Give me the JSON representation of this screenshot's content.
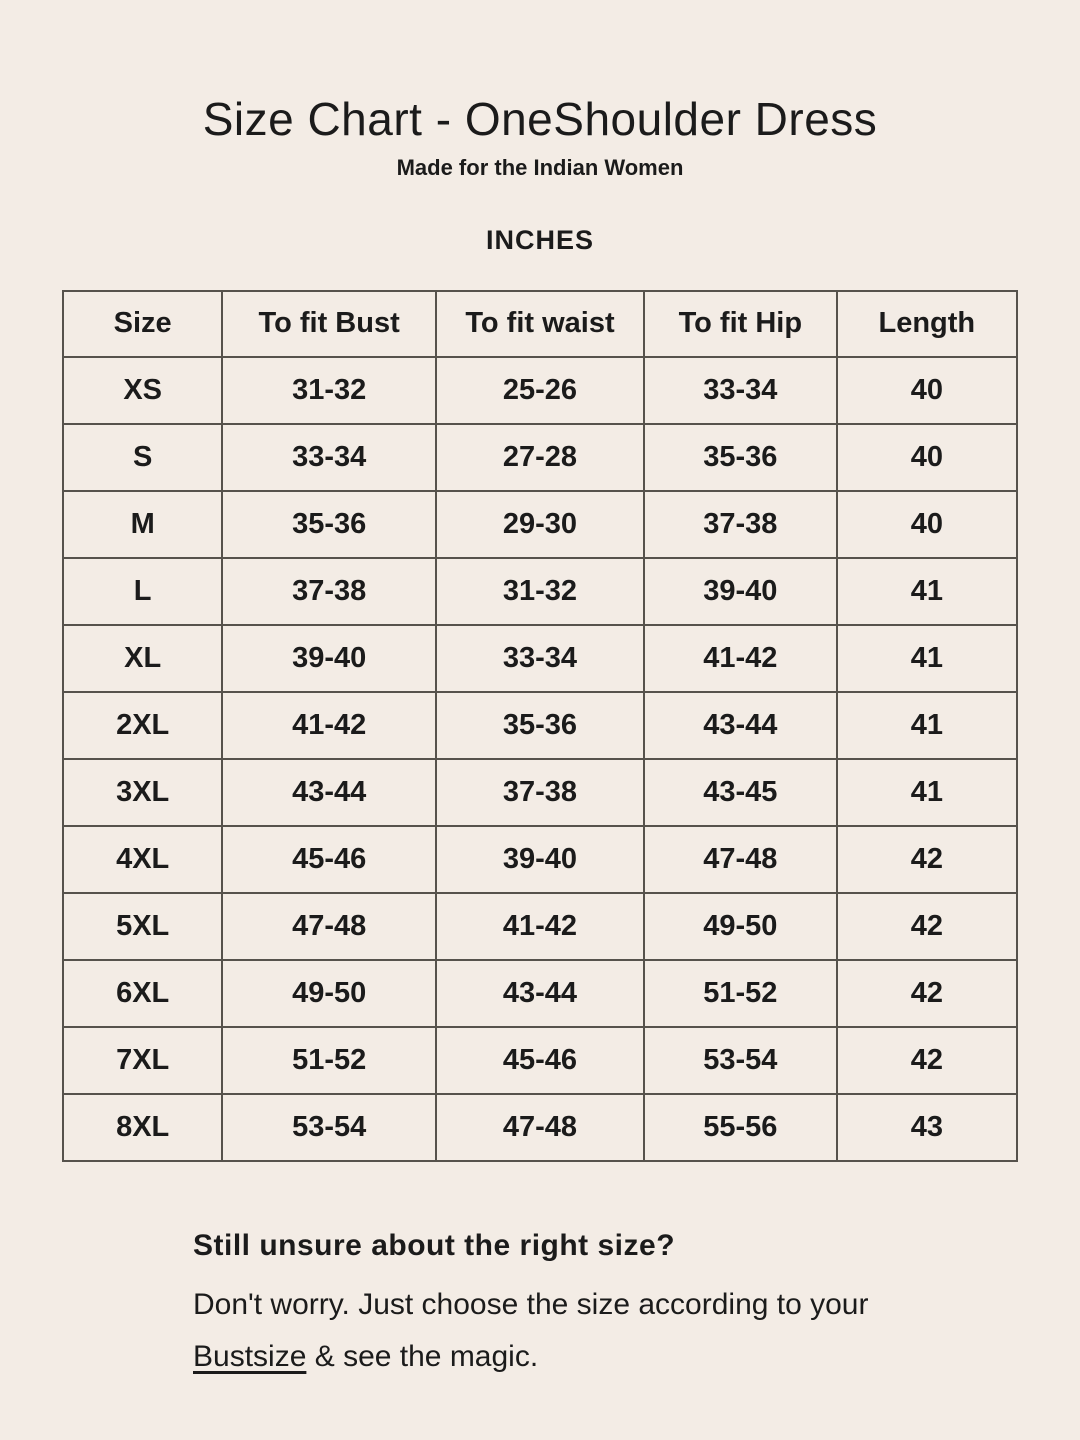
{
  "page": {
    "title": "Size Chart - OneShoulder Dress",
    "subtitle": "Made for the Indian Women",
    "unit_label": "INCHES"
  },
  "chart_data": {
    "type": "table",
    "title": "Size Chart - OneShoulder Dress",
    "columns": [
      "Size",
      "To fit Bust",
      "To fit waist",
      "To fit Hip",
      "Length"
    ],
    "rows": [
      [
        "XS",
        "31-32",
        "25-26",
        "33-34",
        "40"
      ],
      [
        "S",
        "33-34",
        "27-28",
        "35-36",
        "40"
      ],
      [
        "M",
        "35-36",
        "29-30",
        "37-38",
        "40"
      ],
      [
        "L",
        "37-38",
        "31-32",
        "39-40",
        "41"
      ],
      [
        "XL",
        "39-40",
        "33-34",
        "41-42",
        "41"
      ],
      [
        "2XL",
        "41-42",
        "35-36",
        "43-44",
        "41"
      ],
      [
        "3XL",
        "43-44",
        "37-38",
        "43-45",
        "41"
      ],
      [
        "4XL",
        "45-46",
        "39-40",
        "47-48",
        "42"
      ],
      [
        "5XL",
        "47-48",
        "41-42",
        "49-50",
        "42"
      ],
      [
        "6XL",
        "49-50",
        "43-44",
        "51-52",
        "42"
      ],
      [
        "7XL",
        "51-52",
        "45-46",
        "53-54",
        "42"
      ],
      [
        "8XL",
        "53-54",
        "47-48",
        "55-56",
        "43"
      ]
    ]
  },
  "footer": {
    "heading": "Still unsure about the right size?",
    "line1": "Don't worry. Just choose the size according to your",
    "link_text": "Bustsize",
    "line2_rest": " & see the magic."
  },
  "colors": {
    "background": "#f3ece5",
    "text": "#1b1b1b",
    "table_border": "#56524c"
  }
}
